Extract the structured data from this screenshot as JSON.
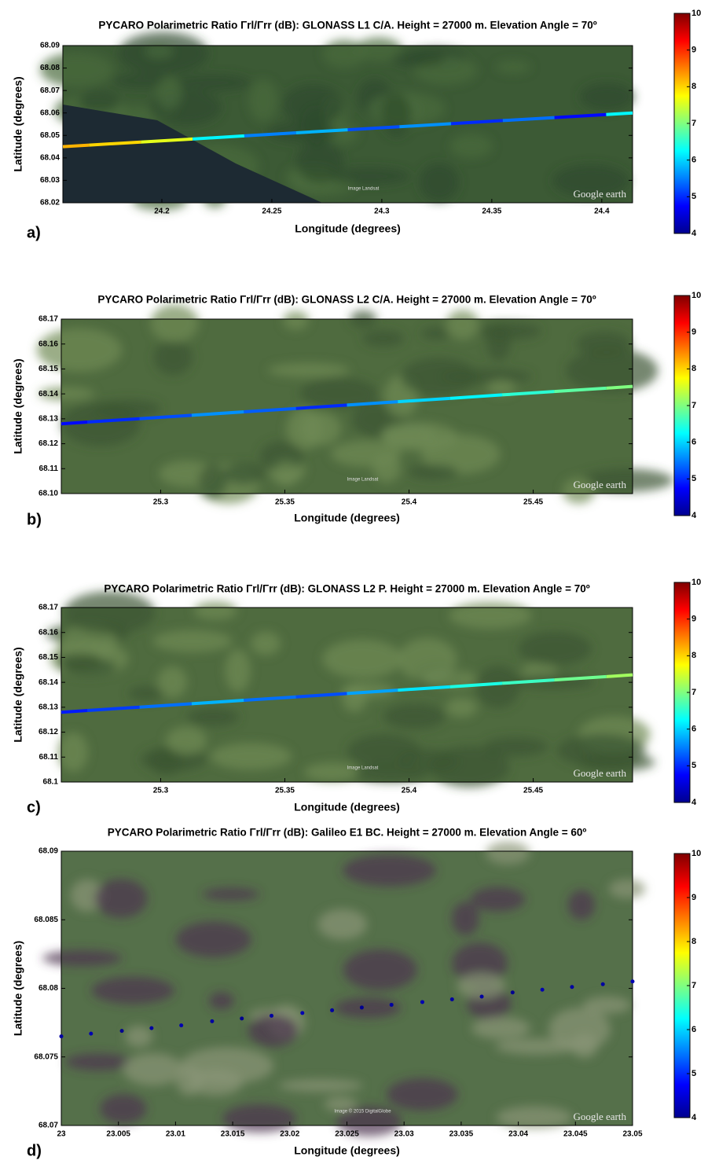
{
  "chart_data": [
    {
      "type": "track",
      "panel": "a)",
      "title": "PYCARO Polarimetric Ratio Γrl/Γrr (dB): GLONASS L1 C/A. Height = 27000 m. Elevation Angle = 70º",
      "x_label": "Longitude (degrees)",
      "y_label": "Latitude (degrees)",
      "watermark": "Google earth",
      "image_credit": "Image Landsat",
      "xlim": [
        24.155,
        24.414
      ],
      "xticks": [
        24.2,
        24.25,
        24.3,
        24.35,
        24.4
      ],
      "ylim": [
        68.02,
        68.09
      ],
      "yticks": [
        68.02,
        68.03,
        68.04,
        68.05,
        68.06,
        68.07,
        68.08,
        68.09
      ],
      "colormap": "jet",
      "clim": [
        4,
        10
      ],
      "cticks": [
        4,
        5,
        6,
        7,
        8,
        9,
        10
      ],
      "x": [
        24.155,
        24.179,
        24.202,
        24.226,
        24.249,
        24.273,
        24.296,
        24.32,
        24.343,
        24.367,
        24.39,
        24.414
      ],
      "y": [
        68.045,
        68.0464,
        68.0477,
        68.0491,
        68.0505,
        68.0518,
        68.0532,
        68.0545,
        68.0559,
        68.0573,
        68.0586,
        68.06
      ],
      "values": [
        8.2,
        8.0,
        7.6,
        6.2,
        5.5,
        5.8,
        5.2,
        5.6,
        5.0,
        5.4,
        4.8,
        6.2
      ]
    },
    {
      "type": "track",
      "panel": "b)",
      "title": "PYCARO Polarimetric Ratio Γrl/Γrr (dB): GLONASS L2 C/A. Height = 27000 m. Elevation Angle = 70º",
      "x_label": "Longitude (degrees)",
      "y_label": "Latitude (degrees)",
      "watermark": "Google earth",
      "image_credit": "Image Landsat",
      "xlim": [
        25.26,
        25.49
      ],
      "xticks": [
        25.3,
        25.35,
        25.4,
        25.45
      ],
      "ylim": [
        68.1,
        68.17
      ],
      "yticks": [
        {
          "value": 68.1,
          "label": "68.10"
        },
        68.11,
        68.12,
        68.13,
        68.14,
        68.15,
        68.16,
        68.17
      ],
      "colormap": "jet",
      "clim": [
        4,
        10
      ],
      "cticks": [
        4,
        5,
        6,
        7,
        8,
        9,
        10
      ],
      "x": [
        25.26,
        25.281,
        25.302,
        25.323,
        25.344,
        25.365,
        25.385,
        25.406,
        25.427,
        25.448,
        25.469,
        25.49
      ],
      "y": [
        68.128,
        68.1294,
        68.1307,
        68.1321,
        68.1335,
        68.1348,
        68.1362,
        68.1375,
        68.1389,
        68.1403,
        68.1416,
        68.143
      ],
      "values": [
        4.8,
        5.0,
        5.2,
        5.6,
        5.3,
        5.0,
        5.6,
        6.0,
        6.2,
        6.5,
        6.8,
        7.0
      ]
    },
    {
      "type": "track",
      "panel": "c)",
      "title": "PYCARO Polarimetric Ratio Γrl/Γrr (dB): GLONASS L2 P. Height = 27000 m. Elevation Angle = 70º",
      "x_label": "Longitude (degrees)",
      "y_label": "Latitude (degrees)",
      "watermark": "Google earth",
      "image_credit": "Image Landsat",
      "xlim": [
        25.26,
        25.49
      ],
      "xticks": [
        25.3,
        25.35,
        25.4,
        25.45
      ],
      "ylim": [
        68.1,
        68.17
      ],
      "yticks": [
        68.1,
        68.11,
        68.12,
        68.13,
        68.14,
        68.15,
        68.16,
        68.17
      ],
      "colormap": "jet",
      "clim": [
        4,
        10
      ],
      "cticks": [
        4,
        5,
        6,
        7,
        8,
        9,
        10
      ],
      "x": [
        25.26,
        25.281,
        25.302,
        25.323,
        25.344,
        25.365,
        25.385,
        25.406,
        25.427,
        25.448,
        25.469,
        25.49
      ],
      "y": [
        68.128,
        68.1294,
        68.1307,
        68.1321,
        68.1335,
        68.1348,
        68.1362,
        68.1375,
        68.1389,
        68.1403,
        68.1416,
        68.143
      ],
      "values": [
        4.9,
        5.1,
        5.4,
        5.8,
        5.4,
        5.2,
        5.7,
        6.1,
        6.4,
        6.6,
        6.9,
        7.2
      ]
    },
    {
      "type": "dots",
      "panel": "d)",
      "title": "PYCARO Polarimetric Ratio Γrl/Γrr (dB): Galileo E1 BC. Height = 27000 m. Elevation Angle = 60º",
      "x_label": "Longitude (degrees)",
      "y_label": "Latitude (degrees)",
      "watermark": "Google earth",
      "image_credit": "Image © 2015 DigitalGlobe",
      "xlim": [
        23,
        23.05
      ],
      "xticks": [
        23,
        23.005,
        23.01,
        23.015,
        23.02,
        23.025,
        23.03,
        23.035,
        23.04,
        23.045,
        23.05
      ],
      "ylim": [
        68.07,
        68.09
      ],
      "yticks": [
        68.07,
        68.075,
        68.08,
        68.085,
        68.09
      ],
      "colormap": "jet",
      "clim": [
        4,
        10
      ],
      "cticks": [
        4,
        5,
        6,
        7,
        8,
        9,
        10
      ],
      "x": [
        23.0,
        23.0026,
        23.0053,
        23.0079,
        23.0105,
        23.0132,
        23.0158,
        23.0184,
        23.0211,
        23.0237,
        23.0263,
        23.0289,
        23.0316,
        23.0342,
        23.0368,
        23.0395,
        23.0421,
        23.0447,
        23.0474,
        23.05
      ],
      "y": [
        68.0765,
        68.0767,
        68.0769,
        68.0771,
        68.0773,
        68.0776,
        68.0778,
        68.078,
        68.0782,
        68.0784,
        68.0786,
        68.0788,
        68.079,
        68.0792,
        68.0794,
        68.0797,
        68.0799,
        68.0801,
        68.0803,
        68.0805
      ],
      "values": [
        4.2,
        4.3,
        4.1,
        4.2,
        4.3,
        4.2,
        4.1,
        4.2,
        4.3,
        4.2,
        4.1,
        4.2,
        4.3,
        4.2,
        4.2,
        4.1,
        4.3,
        4.2,
        4.2,
        4.3
      ]
    }
  ]
}
